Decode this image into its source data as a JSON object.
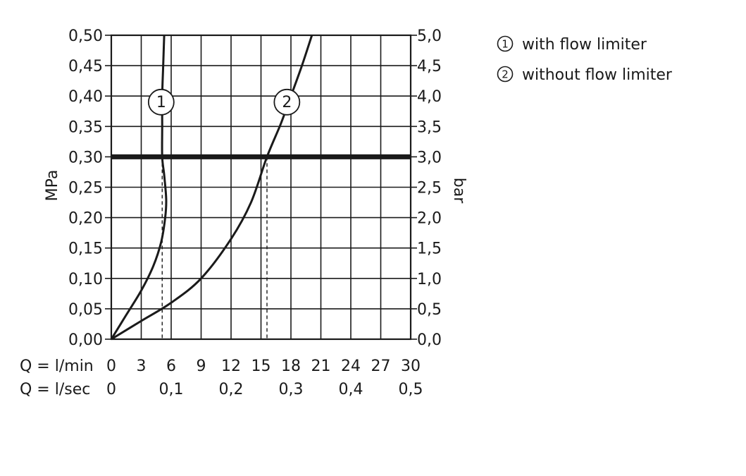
{
  "chart_data": {
    "type": "line",
    "y_left": {
      "label": "MPa",
      "ylim": [
        0,
        0.5
      ],
      "ticks": [
        "0,00",
        "0,05",
        "0,10",
        "0,15",
        "0,20",
        "0,25",
        "0,30",
        "0,35",
        "0,40",
        "0,45",
        "0,50"
      ]
    },
    "y_right": {
      "label": "bar",
      "ticks": [
        "0,0",
        "0,5",
        "1,0",
        "1,5",
        "2,0",
        "2,5",
        "3,0",
        "3,5",
        "4,0",
        "4,5",
        "5,0"
      ]
    },
    "x_primary": {
      "label": "Q = l/min",
      "xlim": [
        0,
        30
      ],
      "ticks": [
        "0",
        "3",
        "6",
        "9",
        "12",
        "15",
        "18",
        "21",
        "24",
        "27",
        "30"
      ]
    },
    "x_secondary": {
      "label": "Q = l/sec",
      "ticks": [
        {
          "value": 0,
          "label": "0"
        },
        {
          "value": 0.1,
          "label": "0,1"
        },
        {
          "value": 0.2,
          "label": "0,2"
        },
        {
          "value": 0.3,
          "label": "0,3"
        },
        {
          "value": 0.4,
          "label": "0,4"
        },
        {
          "value": 0.5,
          "label": "0,5"
        }
      ]
    },
    "grid": true,
    "reference_line": {
      "y": 0.3
    },
    "reference_drops": [
      5.1,
      15.6
    ],
    "series": [
      {
        "marker": "1",
        "marker_at": [
          5.0,
          0.39
        ],
        "points": [
          [
            0,
            0
          ],
          [
            1.5,
            0.04
          ],
          [
            3,
            0.08
          ],
          [
            4.2,
            0.12
          ],
          [
            5.0,
            0.16
          ],
          [
            5.4,
            0.2
          ],
          [
            5.5,
            0.23
          ],
          [
            5.3,
            0.27
          ],
          [
            5.1,
            0.3
          ],
          [
            5.1,
            0.35
          ],
          [
            5.1,
            0.4
          ],
          [
            5.2,
            0.45
          ],
          [
            5.3,
            0.5
          ]
        ]
      },
      {
        "marker": "2",
        "marker_at": [
          17.6,
          0.39
        ],
        "points": [
          [
            0,
            0
          ],
          [
            3,
            0.03
          ],
          [
            6,
            0.06
          ],
          [
            9,
            0.1
          ],
          [
            12,
            0.165
          ],
          [
            14,
            0.225
          ],
          [
            15.6,
            0.3
          ],
          [
            17,
            0.355
          ],
          [
            18,
            0.4
          ],
          [
            19.1,
            0.45
          ],
          [
            20.1,
            0.5
          ]
        ]
      }
    ]
  },
  "legend": {
    "items": [
      {
        "symbol": "1",
        "text": "with flow limiter"
      },
      {
        "symbol": "2",
        "text": "without flow limiter"
      }
    ]
  }
}
